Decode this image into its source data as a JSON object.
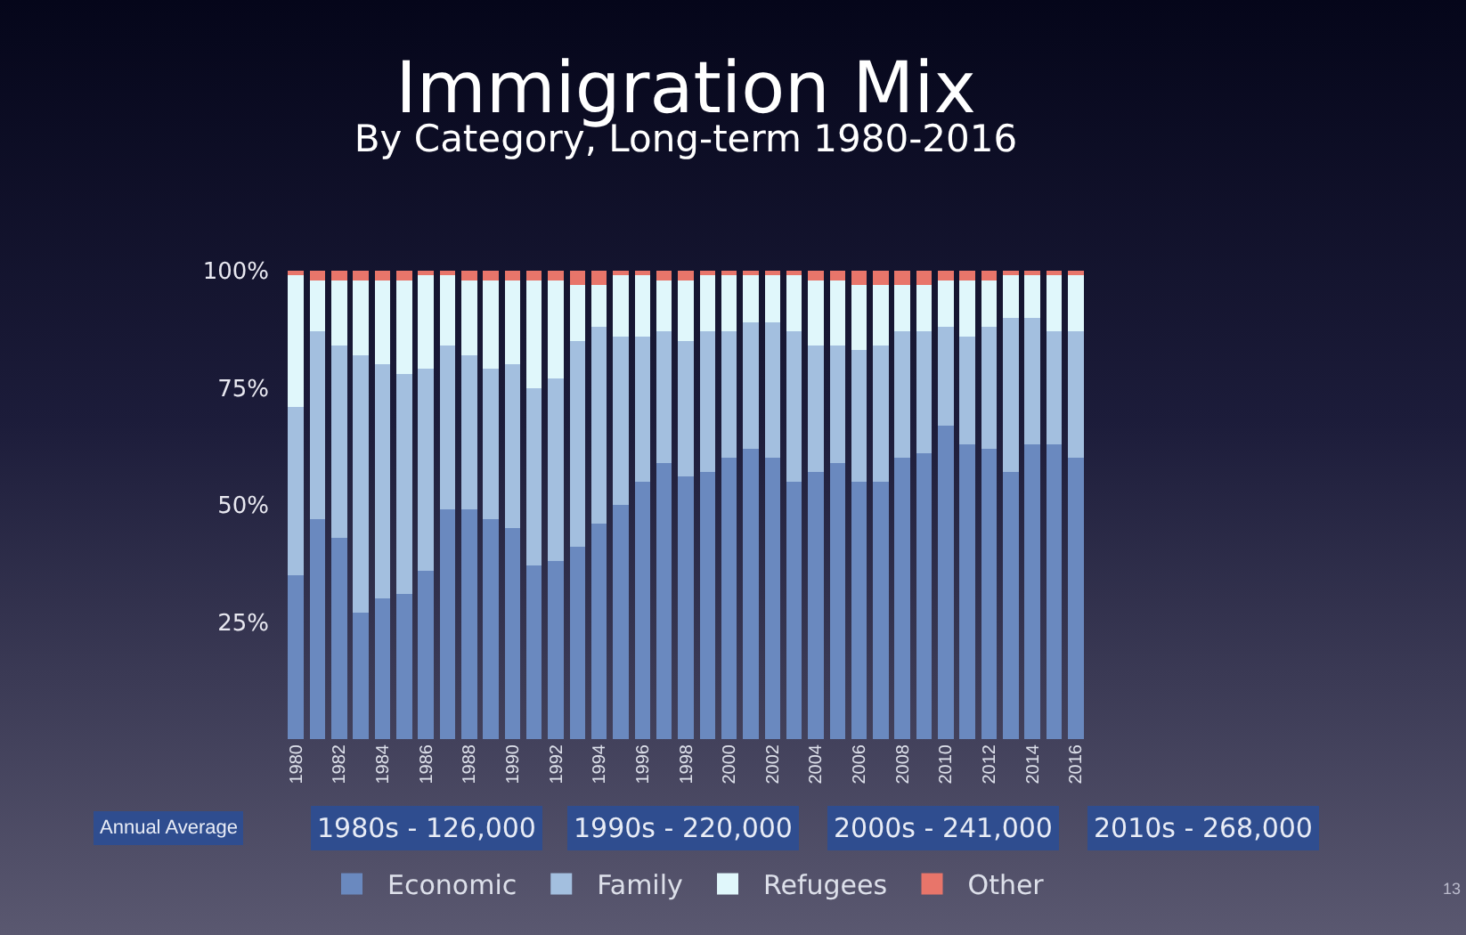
{
  "chart_data": {
    "type": "bar",
    "title": "Immigration Mix",
    "subtitle": "By Category, Long-term 1980-2016",
    "categories": [
      "1980",
      null,
      "1982",
      null,
      "1984",
      null,
      "1986",
      null,
      "1988",
      null,
      "1990",
      null,
      "1992",
      null,
      "1994",
      null,
      "1996",
      null,
      "1998",
      null,
      "2000",
      null,
      "2002",
      null,
      "2004",
      null,
      "2006",
      null,
      "2008",
      null,
      "2010",
      null,
      "2012",
      null,
      "2014",
      null,
      "2016"
    ],
    "stacked": true,
    "series": [
      {
        "name": "Economic",
        "color": "#6a89bf",
        "values": [
          35,
          47,
          43,
          27,
          30,
          31,
          36,
          49,
          49,
          47,
          45,
          37,
          38,
          41,
          46,
          50,
          55,
          59,
          56,
          57,
          60,
          62,
          60,
          55,
          57,
          59,
          55,
          55,
          60,
          61,
          67,
          63,
          62,
          57,
          63,
          63,
          60
        ]
      },
      {
        "name": "Family",
        "color": "#a3bfdf",
        "values": [
          36,
          40,
          41,
          55,
          50,
          47,
          43,
          35,
          33,
          32,
          35,
          38,
          39,
          44,
          42,
          36,
          31,
          28,
          29,
          30,
          27,
          27,
          29,
          32,
          27,
          25,
          28,
          29,
          27,
          26,
          21,
          23,
          26,
          33,
          27,
          24,
          27
        ]
      },
      {
        "name": "Refugees",
        "color": "#e0f7fb",
        "values": [
          28,
          11,
          14,
          16,
          18,
          20,
          20,
          15,
          16,
          19,
          18,
          23,
          21,
          12,
          9,
          13,
          13,
          11,
          13,
          12,
          12,
          10,
          10,
          12,
          14,
          14,
          14,
          13,
          10,
          10,
          10,
          12,
          10,
          9,
          9,
          12,
          12
        ]
      },
      {
        "name": "Other",
        "color": "#e8756a",
        "values": [
          1,
          2,
          2,
          2,
          2,
          2,
          1,
          1,
          2,
          2,
          2,
          2,
          2,
          3,
          3,
          1,
          1,
          2,
          2,
          1,
          1,
          1,
          1,
          1,
          2,
          2,
          3,
          3,
          3,
          3,
          2,
          2,
          2,
          1,
          1,
          1,
          1
        ]
      }
    ],
    "ylim": [
      0,
      100
    ],
    "yticks": [
      {
        "value": 25,
        "label": "25%"
      },
      {
        "value": 50,
        "label": "50%"
      },
      {
        "value": 75,
        "label": "75%"
      },
      {
        "value": 100,
        "label": "100%"
      }
    ],
    "grid": false,
    "legend": "bottom",
    "annotations": [
      "Annual Average",
      "1980s - 126,000",
      "1990s - 220,000",
      "2000s - 241,000",
      "2010s - 268,000",
      "13"
    ]
  }
}
